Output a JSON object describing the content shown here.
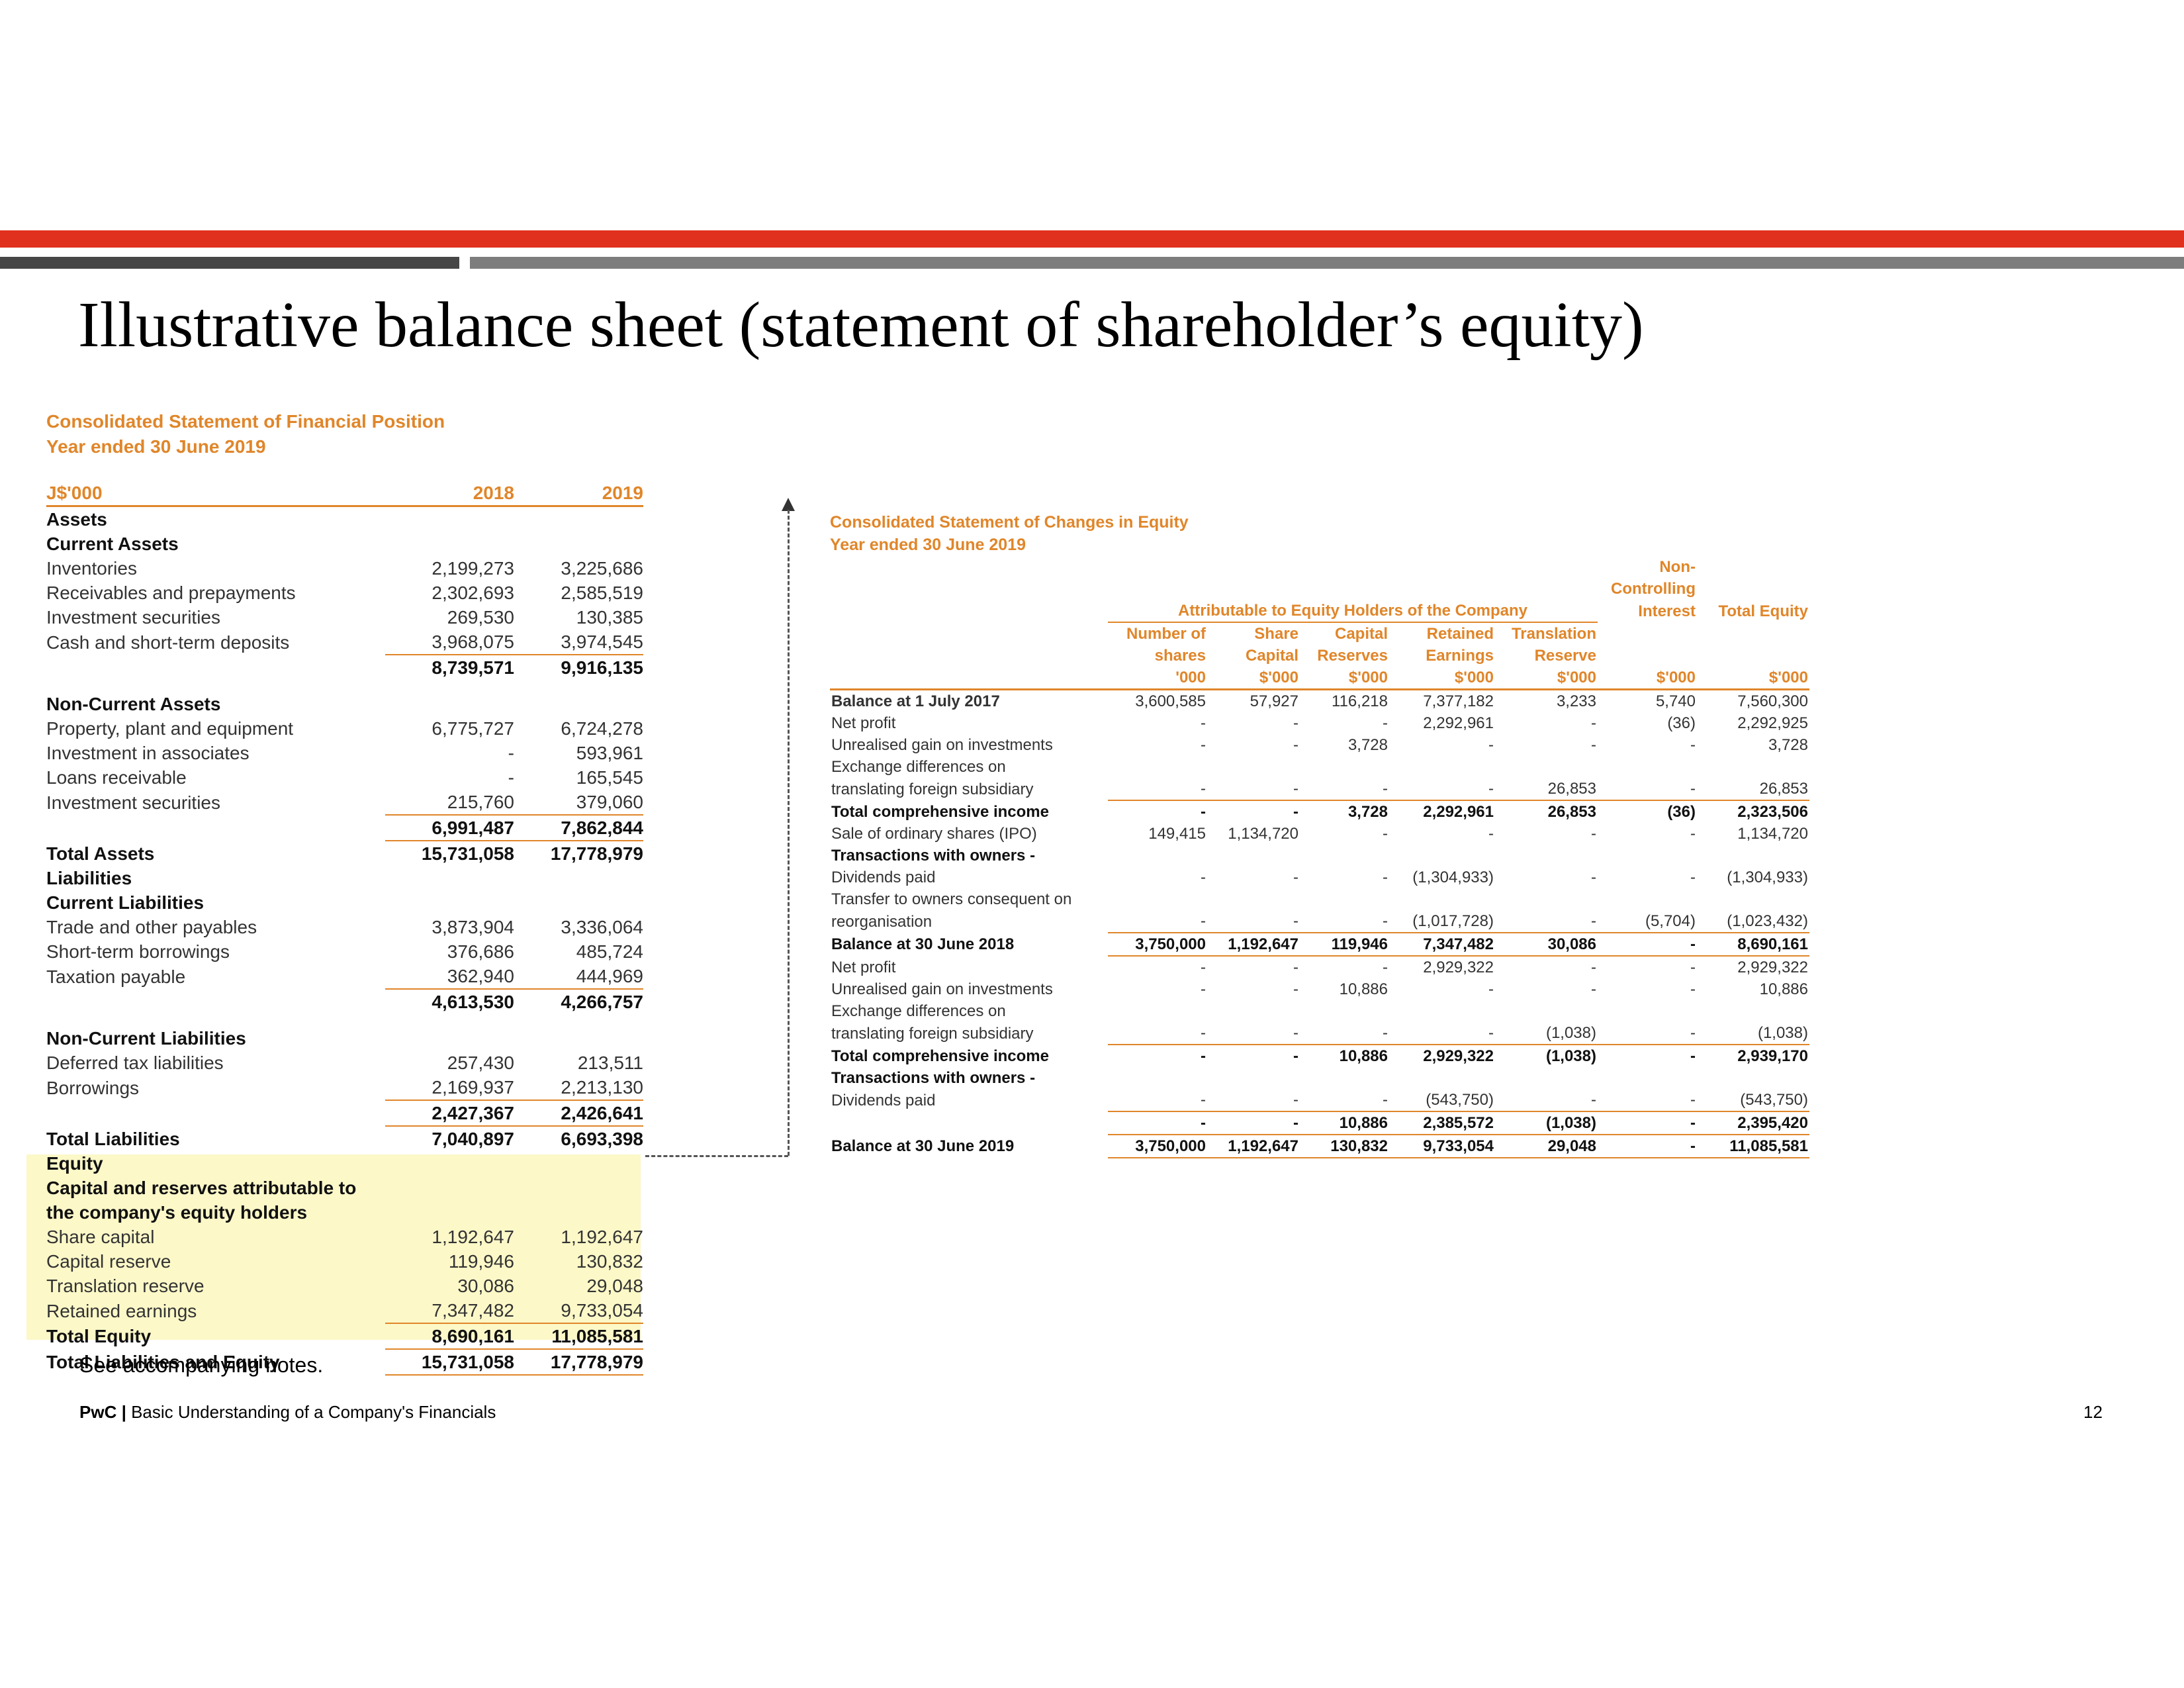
{
  "slide": {
    "title": "Illustrative balance sheet (statement of shareholder’s equity)",
    "note": "See accompanying notes.",
    "footer_brand": "PwC",
    "footer_separator": "|",
    "footer_text": "Basic Understanding of a Company's Financials",
    "page_number": "12"
  },
  "balance_sheet": {
    "heading": "Consolidated Statement of Financial Position",
    "subheading": "Year ended 30 June 2019",
    "rows": [
      {
        "label": "J$'000",
        "v2018": "2018",
        "v2019": "2019",
        "style": "hdr"
      },
      {
        "label": "Assets",
        "v2018": "",
        "v2019": "",
        "style": "bold"
      },
      {
        "label": "Current Assets",
        "v2018": "",
        "v2019": "",
        "style": "bold"
      },
      {
        "label": "Inventories",
        "v2018": "2,199,273",
        "v2019": "3,225,686",
        "style": ""
      },
      {
        "label": "Receivables and prepayments",
        "v2018": "2,302,693",
        "v2019": "2,585,519",
        "style": ""
      },
      {
        "label": "Investment securities",
        "v2018": "269,530",
        "v2019": "130,385",
        "style": ""
      },
      {
        "label": "Cash and short-term deposits",
        "v2018": "3,968,075",
        "v2019": "3,974,545",
        "style": "ul"
      },
      {
        "label": "",
        "v2018": "8,739,571",
        "v2019": "9,916,135",
        "style": "bold"
      },
      {
        "label": "Non-Current Assets",
        "v2018": "",
        "v2019": "",
        "style": "bold"
      },
      {
        "label": "Property, plant and equipment",
        "v2018": "6,775,727",
        "v2019": "6,724,278",
        "style": ""
      },
      {
        "label": "Investment in associates",
        "v2018": "-",
        "v2019": "593,961",
        "style": ""
      },
      {
        "label": "Loans receivable",
        "v2018": "-",
        "v2019": "165,545",
        "style": ""
      },
      {
        "label": "Investment securities",
        "v2018": "215,760",
        "v2019": "379,060",
        "style": "ul"
      },
      {
        "label": "",
        "v2018": "6,991,487",
        "v2019": "7,862,844",
        "style": "bold ul"
      },
      {
        "label": "Total Assets",
        "v2018": "15,731,058",
        "v2019": "17,778,979",
        "style": "bold"
      },
      {
        "label": "Liabilities",
        "v2018": "",
        "v2019": "",
        "style": "bold"
      },
      {
        "label": "Current Liabilities",
        "v2018": "",
        "v2019": "",
        "style": "bold"
      },
      {
        "label": "Trade and other payables",
        "v2018": "3,873,904",
        "v2019": "3,336,064",
        "style": ""
      },
      {
        "label": "Short-term borrowings",
        "v2018": "376,686",
        "v2019": "485,724",
        "style": ""
      },
      {
        "label": "Taxation payable",
        "v2018": "362,940",
        "v2019": "444,969",
        "style": "ul"
      },
      {
        "label": "",
        "v2018": "4,613,530",
        "v2019": "4,266,757",
        "style": "bold"
      },
      {
        "label": "Non-Current Liabilities",
        "v2018": "",
        "v2019": "",
        "style": "bold"
      },
      {
        "label": "Deferred tax liabilities",
        "v2018": "257,430",
        "v2019": "213,511",
        "style": ""
      },
      {
        "label": "Borrowings",
        "v2018": "2,169,937",
        "v2019": "2,213,130",
        "style": "ul"
      },
      {
        "label": "",
        "v2018": "2,427,367",
        "v2019": "2,426,641",
        "style": "bold ul"
      },
      {
        "label": "Total Liabilities",
        "v2018": "7,040,897",
        "v2019": "6,693,398",
        "style": "bold"
      },
      {
        "label": "Equity",
        "v2018": "",
        "v2019": "",
        "style": "bold"
      },
      {
        "label": "Capital and reserves attributable to",
        "v2018": "",
        "v2019": "",
        "style": "bold"
      },
      {
        "label": "the company's equity holders",
        "v2018": "",
        "v2019": "",
        "style": "bold"
      },
      {
        "label": "Share capital",
        "v2018": "1,192,647",
        "v2019": "1,192,647",
        "style": ""
      },
      {
        "label": "Capital reserve",
        "v2018": "119,946",
        "v2019": "130,832",
        "style": ""
      },
      {
        "label": "Translation reserve",
        "v2018": "30,086",
        "v2019": "29,048",
        "style": ""
      },
      {
        "label": "Retained earnings",
        "v2018": "7,347,482",
        "v2019": "9,733,054",
        "style": "ul"
      },
      {
        "label": "Total Equity",
        "v2018": "8,690,161",
        "v2019": "11,085,581",
        "style": "bold ul"
      },
      {
        "label": "Total Liabilities and Equity",
        "v2018": "15,731,058",
        "v2019": "17,778,979",
        "style": "bold ul"
      }
    ]
  },
  "equity_statement": {
    "heading": "Consolidated Statement of Changes in Equity",
    "subheading": "Year ended 30 June 2019",
    "attributable_label": "Attributable to Equity Holders of the Company",
    "nci_header": [
      "Non-",
      "Controlling",
      "Interest"
    ],
    "total_header": "Total Equity",
    "col_headers": [
      {
        "l1": "Number of",
        "l2": "shares",
        "l3": "'000"
      },
      {
        "l1": "Share",
        "l2": "Capital",
        "l3": "$'000"
      },
      {
        "l1": "Capital",
        "l2": "Reserves",
        "l3": "$'000"
      },
      {
        "l1": "Retained",
        "l2": "Earnings",
        "l3": "$'000"
      },
      {
        "l1": "Translation",
        "l2": "Reserve",
        "l3": "$'000"
      },
      {
        "l1": "",
        "l2": "",
        "l3": "$'000"
      },
      {
        "l1": "",
        "l2": "",
        "l3": "$'000"
      }
    ],
    "rows": [
      {
        "label": "Balance at 1 July 2017",
        "vals": [
          "3,600,585",
          "57,927",
          "116,218",
          "7,377,182",
          "3,233",
          "5,740",
          "7,560,300"
        ],
        "style": "top",
        "lstyle": "bold"
      },
      {
        "label": "Net profit",
        "vals": [
          "-",
          "-",
          "-",
          "2,292,961",
          "-",
          "(36)",
          "2,292,925"
        ],
        "style": ""
      },
      {
        "label": "Unrealised gain on investments",
        "vals": [
          "-",
          "-",
          "3,728",
          "-",
          "-",
          "-",
          "3,728"
        ],
        "style": ""
      },
      {
        "label": "Exchange differences on",
        "vals": [
          "",
          "",
          "",
          "",
          "",
          "",
          ""
        ],
        "style": ""
      },
      {
        "label": "translating foreign subsidiary",
        "vals": [
          "-",
          "-",
          "-",
          "-",
          "26,853",
          "-",
          "26,853"
        ],
        "style": "ul"
      },
      {
        "label": "Total comprehensive income",
        "vals": [
          "-",
          "-",
          "3,728",
          "2,292,961",
          "26,853",
          "(36)",
          "2,323,506"
        ],
        "style": "bold"
      },
      {
        "label": "Sale of ordinary shares (IPO)",
        "vals": [
          "149,415",
          "1,134,720",
          "-",
          "-",
          "-",
          "-",
          "1,134,720"
        ],
        "style": ""
      },
      {
        "label": "Transactions with owners -",
        "vals": [
          "",
          "",
          "",
          "",
          "",
          "",
          ""
        ],
        "style": "bold"
      },
      {
        "label": "Dividends paid",
        "vals": [
          "-",
          "-",
          "-",
          "(1,304,933)",
          "-",
          "-",
          "(1,304,933)"
        ],
        "style": ""
      },
      {
        "label": "Transfer to owners consequent on",
        "vals": [
          "",
          "",
          "",
          "",
          "",
          "",
          ""
        ],
        "style": ""
      },
      {
        "label": "reorganisation",
        "vals": [
          "-",
          "-",
          "-",
          "(1,017,728)",
          "-",
          "(5,704)",
          "(1,023,432)"
        ],
        "style": "ul"
      },
      {
        "label": "Balance at 30 June 2018",
        "vals": [
          "3,750,000",
          "1,192,647",
          "119,946",
          "7,347,482",
          "30,086",
          "-",
          "8,690,161"
        ],
        "style": "bold ul"
      },
      {
        "label": "Net profit",
        "vals": [
          "-",
          "-",
          "-",
          "2,929,322",
          "-",
          "-",
          "2,929,322"
        ],
        "style": ""
      },
      {
        "label": "Unrealised gain on investments",
        "vals": [
          "-",
          "-",
          "10,886",
          "-",
          "-",
          "-",
          "10,886"
        ],
        "style": ""
      },
      {
        "label": "Exchange differences on",
        "vals": [
          "",
          "",
          "",
          "",
          "",
          "",
          ""
        ],
        "style": ""
      },
      {
        "label": "translating foreign subsidiary",
        "vals": [
          "-",
          "-",
          "-",
          "-",
          "(1,038)",
          "-",
          "(1,038)"
        ],
        "style": "ul"
      },
      {
        "label": "Total comprehensive income",
        "vals": [
          "-",
          "-",
          "10,886",
          "2,929,322",
          "(1,038)",
          "-",
          "2,939,170"
        ],
        "style": "bold"
      },
      {
        "label": "Transactions with owners -",
        "vals": [
          "",
          "",
          "",
          "",
          "",
          "",
          ""
        ],
        "style": "bold"
      },
      {
        "label": "Dividends paid",
        "vals": [
          "-",
          "-",
          "-",
          "(543,750)",
          "-",
          "-",
          "(543,750)"
        ],
        "style": "ul"
      },
      {
        "label": "",
        "vals": [
          "-",
          "-",
          "10,886",
          "2,385,572",
          "(1,038)",
          "-",
          "2,395,420"
        ],
        "style": "bold ul"
      },
      {
        "label": "Balance at 30 June 2019",
        "vals": [
          "3,750,000",
          "1,192,647",
          "130,832",
          "9,733,054",
          "29,048",
          "-",
          "11,085,581"
        ],
        "style": "bold ul"
      }
    ]
  }
}
